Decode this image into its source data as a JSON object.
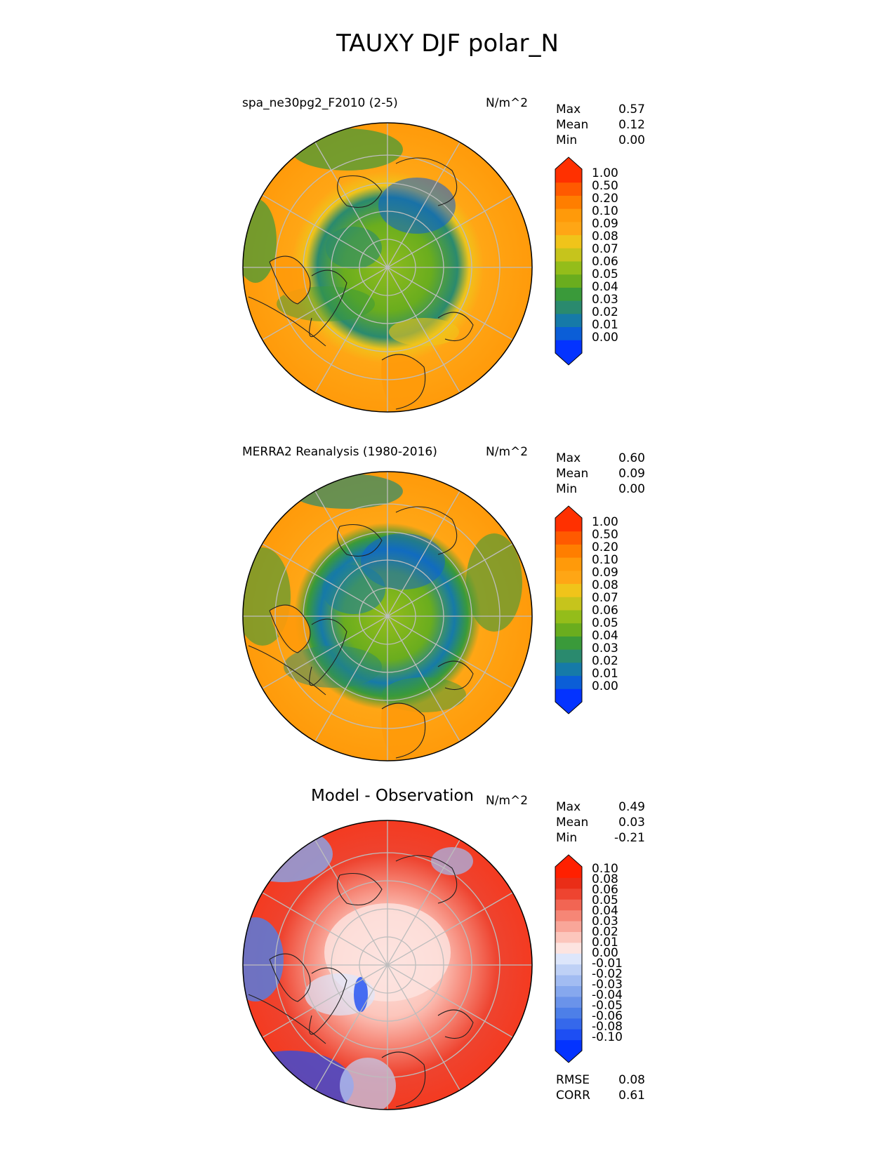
{
  "figure_title": "TAUXY DJF polar_N",
  "panels": [
    {
      "title": "spa_ne30pg2_F2010 (2-5)",
      "units": "N/m^2",
      "stats": {
        "max_label": "Max",
        "max": "0.57",
        "mean_label": "Mean",
        "mean": "0.12",
        "min_label": "Min",
        "min": "0.00"
      },
      "colorbar_labels": [
        "1.00",
        "0.50",
        "0.20",
        "0.10",
        "0.09",
        "0.08",
        "0.07",
        "0.06",
        "0.05",
        "0.04",
        "0.03",
        "0.02",
        "0.01",
        "0.00"
      ]
    },
    {
      "title": "MERRA2 Reanalysis (1980-2016)",
      "units": "N/m^2",
      "stats": {
        "max_label": "Max",
        "max": "0.60",
        "mean_label": "Mean",
        "mean": "0.09",
        "min_label": "Min",
        "min": "0.00"
      },
      "colorbar_labels": [
        "1.00",
        "0.50",
        "0.20",
        "0.10",
        "0.09",
        "0.08",
        "0.07",
        "0.06",
        "0.05",
        "0.04",
        "0.03",
        "0.02",
        "0.01",
        "0.00"
      ]
    },
    {
      "title": "Model - Observation",
      "units": "N/m^2",
      "stats": {
        "max_label": "Max",
        "max": "0.49",
        "mean_label": "Mean",
        "mean": "0.03",
        "min_label": "Min",
        "min": "-0.21"
      },
      "colorbar_labels": [
        "0.10",
        "0.08",
        "0.06",
        "0.05",
        "0.04",
        "0.03",
        "0.02",
        "0.01",
        "0.00",
        "-0.01",
        "-0.02",
        "-0.03",
        "-0.04",
        "-0.05",
        "-0.06",
        "-0.08",
        "-0.10"
      ],
      "rmse_label": "RMSE",
      "rmse": "0.08",
      "corr_label": "CORR",
      "corr": "0.61"
    }
  ],
  "colors": {
    "abs_scale": [
      "#0433ff",
      "#0b5ed7",
      "#167aa8",
      "#2a8a6e",
      "#3a9a3a",
      "#6aad1e",
      "#94bd1a",
      "#c6c41c",
      "#f0c41a",
      "#ffa615",
      "#ff9a0a",
      "#ff7e00",
      "#ff5a00",
      "#ff3000"
    ],
    "diff_scale": [
      "#0433ff",
      "#1d4ef3",
      "#3568eb",
      "#4d7fe8",
      "#6a93ea",
      "#86a8ee",
      "#a2bcf2",
      "#bfd1f6",
      "#dde6fb",
      "#fde4e0",
      "#fcc6bc",
      "#f9a699",
      "#f68676",
      "#f26553",
      "#ee4430",
      "#ea2d17",
      "#ff2000"
    ],
    "ocean_orange": "#ff9b10",
    "diff_red": "#f43a20"
  },
  "chart_data": {
    "type": "heatmap",
    "title": "TAUXY DJF polar_N",
    "projection": "north polar stereographic",
    "panels": [
      {
        "name": "spa_ne30pg2_F2010 (2-5)",
        "max": 0.57,
        "mean": 0.12,
        "min": 0.0
      },
      {
        "name": "MERRA2 Reanalysis (1980-2016)",
        "max": 0.6,
        "mean": 0.09,
        "min": 0.0
      },
      {
        "name": "Model - Observation",
        "max": 0.49,
        "mean": 0.03,
        "min": -0.21,
        "rmse": 0.08,
        "corr": 0.61
      }
    ]
  }
}
